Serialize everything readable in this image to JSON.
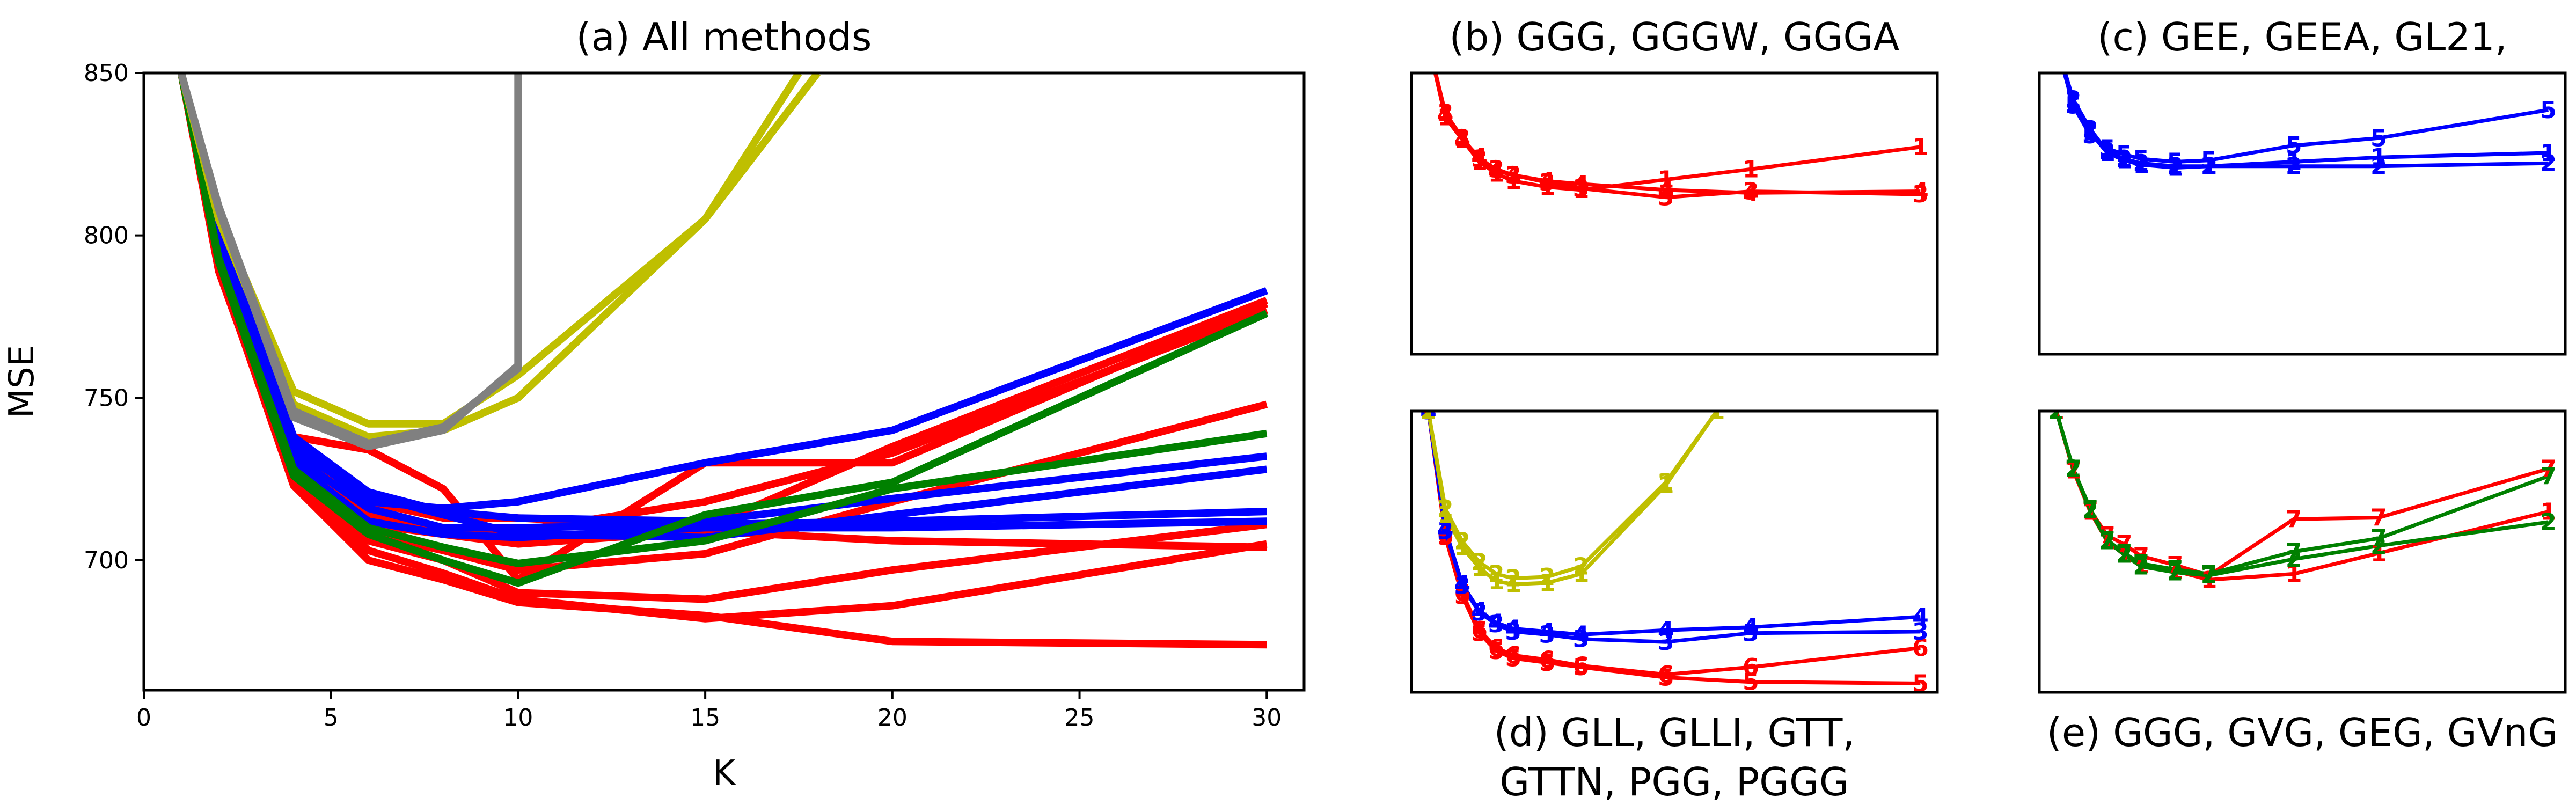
{
  "chart_data": [
    {
      "type": "line",
      "title": "(a) All methods",
      "xlabel": "K",
      "ylabel": "MSE",
      "xlim": [
        0,
        31
      ],
      "ylim": [
        660,
        850
      ],
      "xticks": [
        0,
        5,
        10,
        15,
        20,
        25,
        30
      ],
      "yticks": [
        700,
        750,
        800,
        850
      ],
      "grid": false,
      "series": [
        {
          "color": "#ff0000",
          "x": [
            1,
            2,
            4,
            6,
            8,
            10,
            15,
            20,
            30
          ],
          "y": [
            850,
            790,
            723,
            700,
            694,
            687,
            683,
            675,
            674
          ]
        },
        {
          "color": "#ff0000",
          "x": [
            1,
            2,
            4,
            6,
            8,
            10,
            15,
            20,
            30
          ],
          "y": [
            850,
            789,
            725,
            703,
            696,
            688,
            682,
            686,
            705
          ]
        },
        {
          "color": "#ff0000",
          "x": [
            1,
            2,
            4,
            6,
            8,
            10,
            15,
            20,
            30
          ],
          "y": [
            850,
            790,
            726,
            706,
            700,
            690,
            688,
            697,
            711
          ]
        },
        {
          "color": "#ff0000",
          "x": [
            1,
            2,
            4,
            6,
            8,
            10,
            15,
            20,
            30
          ],
          "y": [
            850,
            791,
            727,
            708,
            703,
            697,
            702,
            718,
            748
          ]
        },
        {
          "color": "#ff0000",
          "x": [
            1,
            2,
            4,
            6,
            8,
            10,
            15,
            20,
            30
          ],
          "y": [
            850,
            792,
            728,
            711,
            708,
            705,
            709,
            706,
            704
          ]
        },
        {
          "color": "#ff0000",
          "x": [
            1,
            2,
            4,
            6,
            8,
            10,
            15,
            20,
            30
          ],
          "y": [
            850,
            793,
            730,
            714,
            709,
            709,
            718,
            733,
            777
          ]
        },
        {
          "color": "#ff0000",
          "x": [
            1,
            2,
            4,
            6,
            8,
            10,
            15,
            20,
            30
          ],
          "y": [
            850,
            794,
            733,
            718,
            713,
            713,
            710,
            735,
            780
          ]
        },
        {
          "color": "#ff0000",
          "x": [
            1,
            2,
            4,
            6,
            8,
            10,
            15,
            20,
            30
          ],
          "y": [
            850,
            795,
            738,
            734,
            722,
            694,
            730,
            730,
            779
          ]
        },
        {
          "color": "#0000ff",
          "x": [
            1,
            2,
            4,
            6,
            8,
            10,
            15,
            20,
            30
          ],
          "y": [
            850,
            800,
            730,
            712,
            708,
            707,
            710,
            710,
            712
          ]
        },
        {
          "color": "#0000ff",
          "x": [
            1,
            2,
            4,
            6,
            8,
            10,
            15,
            20,
            30
          ],
          "y": [
            850,
            801,
            732,
            716,
            710,
            710,
            711,
            712,
            715
          ]
        },
        {
          "color": "#0000ff",
          "x": [
            1,
            2,
            4,
            6,
            8,
            10,
            15,
            20,
            30
          ],
          "y": [
            850,
            802,
            734,
            720,
            714,
            708,
            707,
            714,
            728
          ]
        },
        {
          "color": "#0000ff",
          "x": [
            1,
            2,
            4,
            6,
            8,
            10,
            15,
            20,
            30
          ],
          "y": [
            850,
            803,
            736,
            718,
            716,
            718,
            730,
            740,
            783
          ]
        },
        {
          "color": "#0000ff",
          "x": [
            1,
            2,
            4,
            6,
            8,
            10,
            15,
            20,
            30
          ],
          "y": [
            850,
            804,
            738,
            721,
            715,
            713,
            712,
            719,
            732
          ]
        },
        {
          "color": "#008000",
          "x": [
            1,
            2,
            4,
            6,
            8,
            10,
            15,
            20,
            30
          ],
          "y": [
            850,
            792,
            726,
            708,
            700,
            693,
            714,
            724,
            776
          ]
        },
        {
          "color": "#008000",
          "x": [
            1,
            2,
            4,
            6,
            8,
            10,
            15,
            20,
            30
          ],
          "y": [
            850,
            793,
            728,
            710,
            704,
            699,
            706,
            722,
            739
          ]
        },
        {
          "color": "#bfbf00",
          "x": [
            1,
            2,
            4,
            6,
            8,
            10,
            15,
            18
          ],
          "y": [
            850,
            805,
            748,
            738,
            740,
            750,
            805,
            850
          ]
        },
        {
          "color": "#bfbf00",
          "x": [
            1,
            2,
            4,
            6,
            8,
            10,
            15,
            17.5
          ],
          "y": [
            850,
            806,
            752,
            742,
            742,
            757,
            805,
            850
          ]
        },
        {
          "color": "#808080",
          "x": [
            1,
            2,
            4,
            6,
            8,
            10,
            10
          ],
          "y": [
            850,
            808,
            744,
            735,
            740,
            760,
            850
          ]
        },
        {
          "color": "#808080",
          "x": [
            1,
            2,
            4,
            6,
            8,
            10,
            10
          ],
          "y": [
            850,
            809,
            746,
            736,
            741,
            759,
            850
          ]
        }
      ]
    },
    {
      "type": "line",
      "title": "(b) GGG, GGGW, GGGA",
      "xlim": [
        0,
        31
      ],
      "ylim": [
        660,
        850
      ],
      "series": [
        {
          "color": "#ff0000",
          "marker": "1",
          "x": [
            1,
            2,
            3,
            4,
            5,
            6,
            8,
            10,
            15,
            20,
            30
          ],
          "y": [
            870,
            820,
            805,
            790,
            782,
            777,
            773,
            771,
            778,
            785,
            800
          ]
        },
        {
          "color": "#ff0000",
          "marker": "3",
          "x": [
            1,
            2,
            3,
            4,
            5,
            6,
            8,
            10,
            15,
            20,
            30
          ],
          "y": [
            870,
            823,
            806,
            792,
            785,
            781,
            776,
            772,
            766,
            770,
            768
          ]
        },
        {
          "color": "#ff0000",
          "marker": "4",
          "x": [
            1,
            2,
            3,
            4,
            5,
            6,
            8,
            10,
            15,
            20,
            30
          ],
          "y": [
            870,
            822,
            805,
            793,
            784,
            781,
            777,
            775,
            771,
            769,
            770
          ]
        }
      ]
    },
    {
      "type": "line",
      "title": "(c) GEE, GEEA, GL21,",
      "xlim": [
        0,
        31
      ],
      "ylim": [
        660,
        850
      ],
      "series": [
        {
          "color": "#0000ff",
          "marker": "1",
          "x": [
            1,
            2,
            3,
            4,
            5,
            6,
            8,
            10,
            15,
            20,
            30
          ],
          "y": [
            870,
            830,
            810,
            796,
            791,
            788,
            786,
            787,
            790,
            793,
            796
          ]
        },
        {
          "color": "#0000ff",
          "marker": "2",
          "x": [
            1,
            2,
            3,
            4,
            5,
            6,
            8,
            10,
            15,
            20,
            30
          ],
          "y": [
            870,
            832,
            812,
            797,
            792,
            789,
            787,
            787,
            787,
            787,
            789
          ]
        },
        {
          "color": "#0000ff",
          "marker": "5",
          "x": [
            1,
            2,
            3,
            4,
            5,
            6,
            8,
            10,
            15,
            20,
            30
          ],
          "y": [
            870,
            828,
            808,
            799,
            795,
            792,
            790,
            791,
            801,
            806,
            825
          ]
        }
      ]
    },
    {
      "type": "line",
      "title": "(d) GLL, GLLI, GTT, GTTN, PGG, PGGG",
      "xlim": [
        0,
        31
      ],
      "ylim": [
        660,
        850
      ],
      "series": [
        {
          "color": "#ff0000",
          "marker": "5",
          "x": [
            1,
            2,
            3,
            4,
            5,
            6,
            8,
            10,
            15,
            20,
            30
          ],
          "y": [
            850,
            765,
            725,
            700,
            688,
            683,
            680,
            677,
            670,
            667,
            666
          ]
        },
        {
          "color": "#ff0000",
          "marker": "6",
          "x": [
            1,
            2,
            3,
            4,
            5,
            6,
            8,
            10,
            15,
            20,
            30
          ],
          "y": [
            850,
            766,
            727,
            702,
            690,
            685,
            682,
            678,
            672,
            677,
            690
          ]
        },
        {
          "color": "#0000ff",
          "marker": "3",
          "x": [
            1,
            2,
            3,
            4,
            5,
            6,
            8,
            10,
            15,
            20,
            30
          ],
          "y": [
            850,
            769,
            732,
            714,
            706,
            701,
            699,
            696,
            694,
            700,
            701
          ]
        },
        {
          "color": "#0000ff",
          "marker": "4",
          "x": [
            1,
            2,
            3,
            4,
            5,
            6,
            8,
            10,
            15,
            20,
            30
          ],
          "y": [
            850,
            770,
            733,
            715,
            707,
            703,
            701,
            699,
            702,
            704,
            711
          ]
        },
        {
          "color": "#bfbf00",
          "marker": "1",
          "x": [
            1,
            2,
            3,
            4,
            5,
            6,
            8,
            10,
            15,
            18
          ],
          "y": [
            850,
            780,
            758,
            744,
            735,
            733,
            734,
            740,
            800,
            850
          ]
        },
        {
          "color": "#bfbf00",
          "marker": "2",
          "x": [
            1,
            2,
            3,
            4,
            5,
            6,
            8,
            10,
            15,
            18
          ],
          "y": [
            850,
            784,
            762,
            748,
            740,
            737,
            738,
            745,
            802,
            850
          ]
        }
      ]
    },
    {
      "type": "line",
      "title": "(e) GGG, GVG, GEG, GVnG",
      "xlim": [
        0,
        31
      ],
      "ylim": [
        660,
        850
      ],
      "series": [
        {
          "color": "#ff0000",
          "marker": "1",
          "x": [
            1,
            2,
            3,
            4,
            5,
            6,
            8,
            10,
            15,
            20,
            30
          ],
          "y": [
            850,
            810,
            782,
            762,
            753,
            746,
            742,
            736,
            740,
            754,
            782
          ]
        },
        {
          "color": "#ff0000",
          "marker": "7",
          "x": [
            1,
            2,
            3,
            4,
            5,
            6,
            8,
            10,
            15,
            20,
            30
          ],
          "y": [
            850,
            810,
            783,
            766,
            760,
            752,
            746,
            739,
            777,
            778,
            811
          ]
        },
        {
          "color": "#008000",
          "marker": "2",
          "x": [
            1,
            2,
            3,
            4,
            5,
            6,
            8,
            10,
            15,
            20,
            30
          ],
          "y": [
            850,
            811,
            783,
            762,
            753,
            745,
            741,
            739,
            750,
            759,
            775
          ]
        },
        {
          "color": "#008000",
          "marker": "7",
          "x": [
            1,
            2,
            3,
            4,
            5,
            6,
            8,
            10,
            15,
            20,
            30
          ],
          "y": [
            850,
            811,
            784,
            763,
            754,
            747,
            743,
            740,
            755,
            764,
            806
          ]
        }
      ]
    }
  ]
}
